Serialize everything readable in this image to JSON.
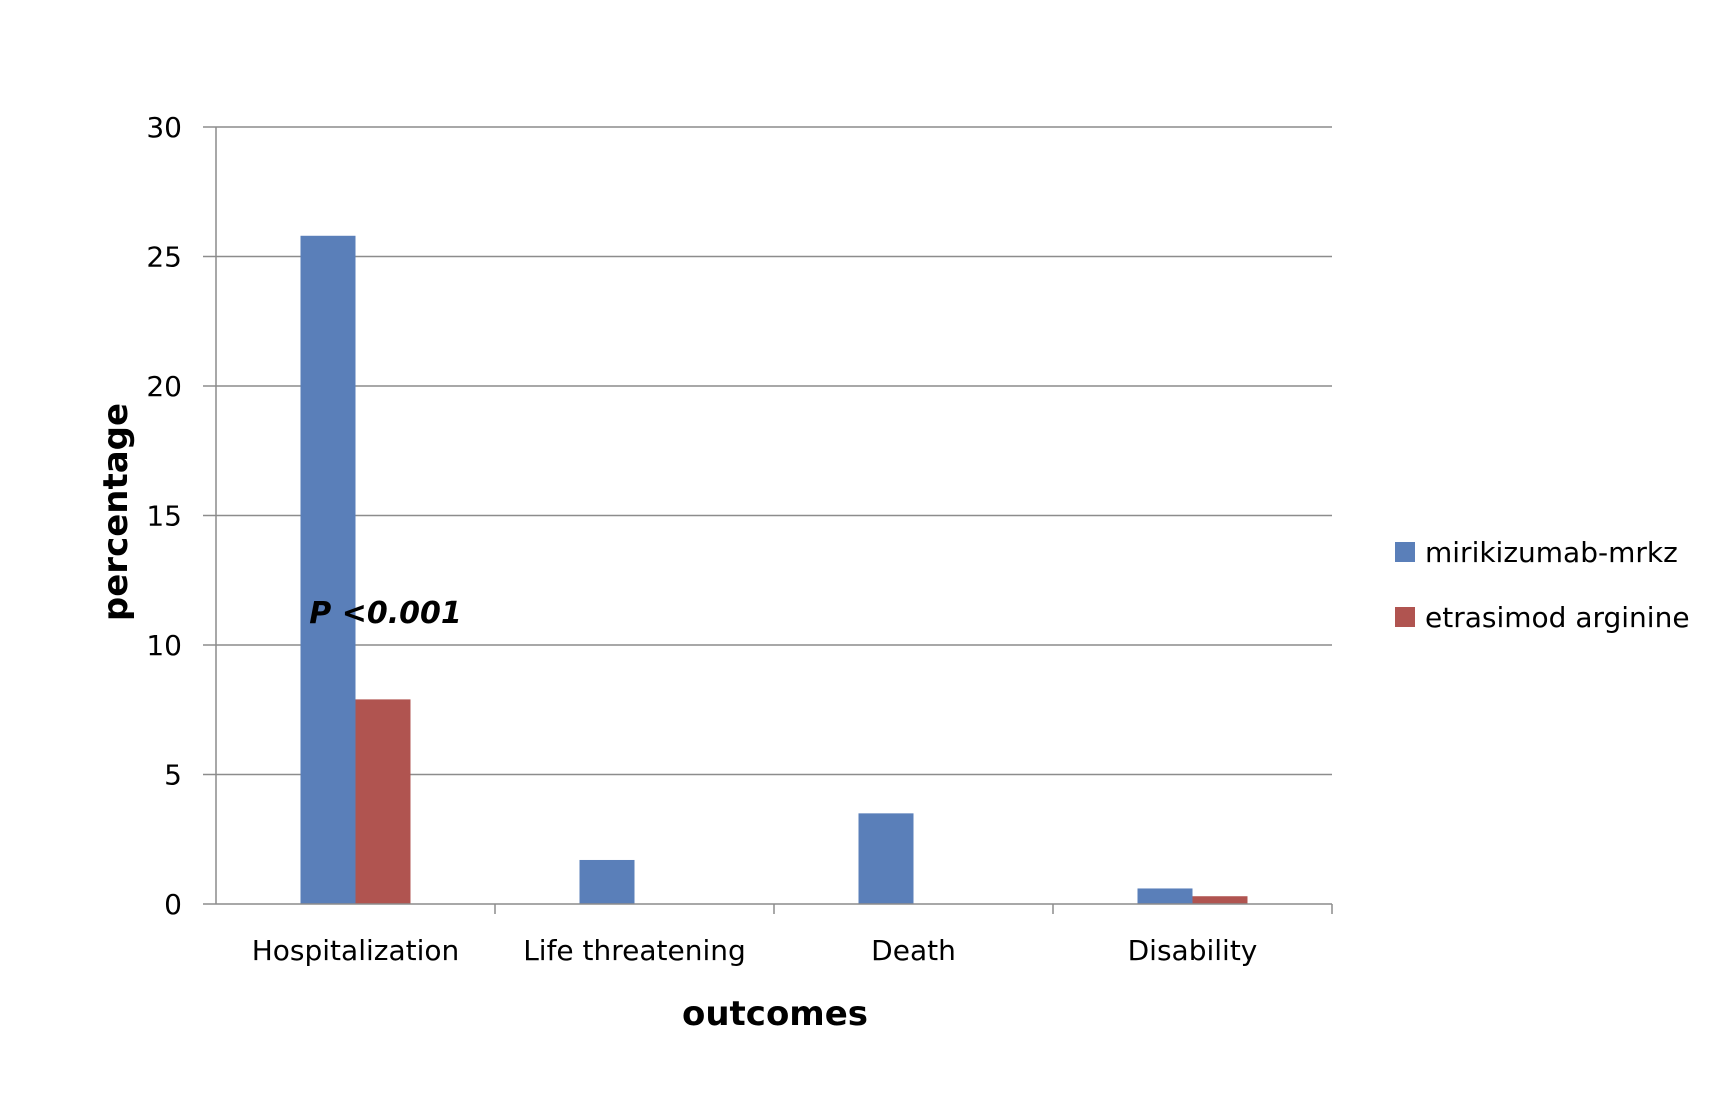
{
  "chart_data": {
    "type": "bar",
    "categories": [
      "Hospitalization",
      "Life threatening",
      "Death",
      "Disability"
    ],
    "series": [
      {
        "name": "mirikizumab-mrkz",
        "color": "#5a7fb9",
        "values": [
          25.8,
          1.7,
          3.5,
          0.6
        ]
      },
      {
        "name": "etrasimod arginine",
        "color": "#b05450",
        "values": [
          7.9,
          0,
          0,
          0.3
        ]
      }
    ],
    "title": "",
    "xlabel": "outcomes",
    "ylabel": "percentage",
    "ylim": [
      0,
      30
    ],
    "yticks": [
      0,
      5,
      10,
      15,
      20,
      25,
      30
    ],
    "grid": true,
    "legend_position": "right",
    "annotation": {
      "text": "P <0.001",
      "category": "Hospitalization"
    }
  }
}
